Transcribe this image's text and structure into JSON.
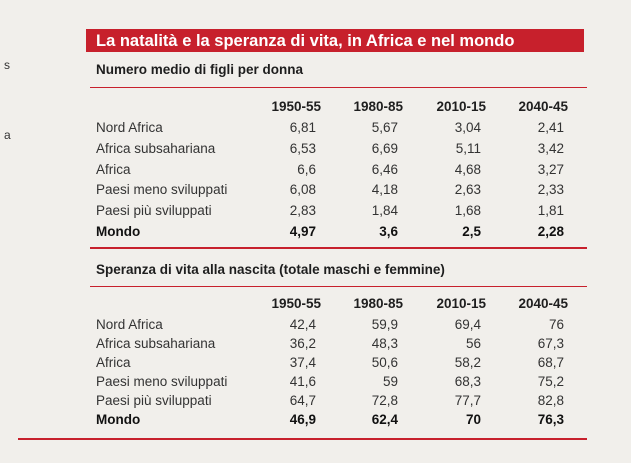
{
  "title": "La natalità e la speranza di vita, in Africa e nel mondo",
  "margin_marks": [
    "s",
    "a"
  ],
  "years": [
    "1950-55",
    "1980-85",
    "2010-15",
    "2040-45"
  ],
  "sections": [
    {
      "heading": "Numero medio di figli per donna",
      "rows": [
        {
          "label": "Nord Africa",
          "values": [
            "6,81",
            "5,67",
            "3,04",
            "2,41"
          ],
          "bold": false
        },
        {
          "label": "Africa subsahariana",
          "values": [
            "6,53",
            "6,69",
            "5,11",
            "3,42"
          ],
          "bold": false
        },
        {
          "label": "Africa",
          "values": [
            "6,6",
            "6,46",
            "4,68",
            "3,27"
          ],
          "bold": false
        },
        {
          "label": "Paesi meno sviluppati",
          "values": [
            "6,08",
            "4,18",
            "2,63",
            "2,33"
          ],
          "bold": false
        },
        {
          "label": "Paesi più sviluppati",
          "values": [
            "2,83",
            "1,84",
            "1,68",
            "1,81"
          ],
          "bold": false
        },
        {
          "label": "Mondo",
          "values": [
            "4,97",
            "3,6",
            "2,5",
            "2,28"
          ],
          "bold": true
        }
      ]
    },
    {
      "heading": "Speranza di vita alla nascita (totale maschi e femmine)",
      "rows": [
        {
          "label": "Nord Africa",
          "values": [
            "42,4",
            "59,9",
            "69,4",
            "76"
          ],
          "bold": false
        },
        {
          "label": "Africa subsahariana",
          "values": [
            "36,2",
            "48,3",
            "56",
            "67,3"
          ],
          "bold": false
        },
        {
          "label": "Africa",
          "values": [
            "37,4",
            "50,6",
            "58,2",
            "68,7"
          ],
          "bold": false
        },
        {
          "label": "Paesi meno sviluppati",
          "values": [
            "41,6",
            "59",
            "68,3",
            "75,2"
          ],
          "bold": false
        },
        {
          "label": "Paesi più sviluppati",
          "values": [
            "64,7",
            "72,8",
            "77,7",
            "82,8"
          ],
          "bold": false
        },
        {
          "label": "Mondo",
          "values": [
            "46,9",
            "62,4",
            "70",
            "76,3"
          ],
          "bold": true
        }
      ]
    }
  ]
}
